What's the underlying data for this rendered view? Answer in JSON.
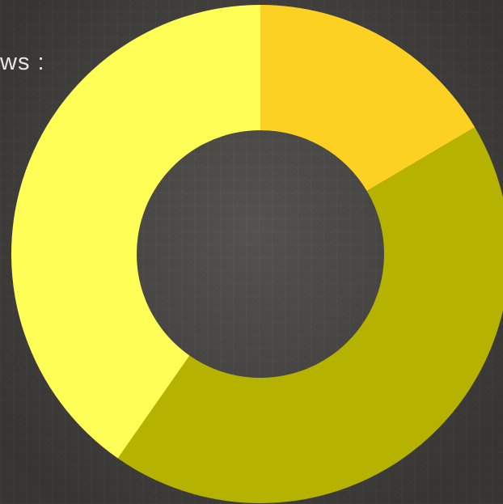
{
  "caption": "ws :",
  "chart_data": {
    "type": "pie",
    "subtype": "donut",
    "title": "",
    "legend": "none",
    "start_angle_deg": 0,
    "direction": "clockwise",
    "slices": [
      {
        "value": 16.5,
        "color": "#FDD122"
      },
      {
        "value": 43.2,
        "color": "#B5B300"
      },
      {
        "value": 40.3,
        "color": "#FEFE57"
      }
    ]
  }
}
